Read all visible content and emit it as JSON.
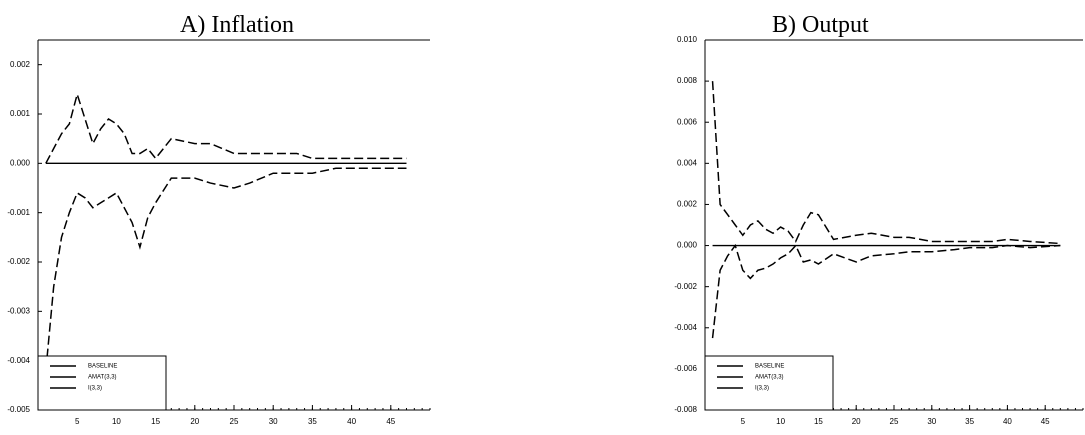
{
  "chart_data": [
    {
      "type": "line",
      "title": "A) Inflation",
      "x": [
        1,
        2,
        3,
        4,
        5,
        6,
        7,
        8,
        9,
        10,
        11,
        12,
        13,
        14,
        15,
        17,
        20,
        22,
        25,
        27,
        30,
        33,
        35,
        38,
        40,
        43,
        47
      ],
      "series": [
        {
          "name": "BASELINE",
          "color": "#000000",
          "values": [
            0,
            0,
            0,
            0,
            0,
            0,
            0,
            0,
            0,
            0,
            0,
            0,
            0,
            0,
            0,
            0,
            0,
            0,
            0,
            0,
            0,
            0,
            0,
            0,
            0,
            0,
            0
          ]
        },
        {
          "name": "AMAT(3,3)",
          "color": "#000000",
          "values": [
            0,
            0.0003,
            0.0006,
            0.0008,
            0.0014,
            0.0009,
            0.0004,
            0.0007,
            0.0009,
            0.0008,
            0.0006,
            0.0002,
            0.0002,
            0.0003,
            0.0001,
            0.0005,
            0.0004,
            0.0004,
            0.0002,
            0.0002,
            0.0002,
            0.0002,
            0.0001,
            0.0001,
            0.0001,
            0.0001,
            0.0001
          ]
        },
        {
          "name": "I(3,3)",
          "color": "#000000",
          "values": [
            -0.0042,
            -0.0025,
            -0.0015,
            -0.001,
            -0.0006,
            -0.0007,
            -0.0009,
            -0.0008,
            -0.0007,
            -0.0006,
            -0.0009,
            -0.0012,
            -0.0017,
            -0.0011,
            -0.0008,
            -0.0003,
            -0.0003,
            -0.0004,
            -0.0005,
            -0.0004,
            -0.0002,
            -0.0002,
            -0.0002,
            -0.0001,
            -0.0001,
            -0.0001,
            -0.0001
          ]
        }
      ],
      "xlim": [
        0,
        50
      ],
      "xticks": [
        5,
        10,
        15,
        20,
        25,
        30,
        35,
        40,
        45
      ],
      "ylim": [
        -0.005,
        0.0025
      ],
      "yticks": [
        {
          "value": 0.002,
          "label": "0.002"
        },
        {
          "value": 0.001,
          "label": "0.001"
        },
        {
          "value": 0,
          "label": "0.000"
        },
        {
          "value": -0.001,
          "label": "-0.001"
        },
        {
          "value": -0.002,
          "label": "-0.002"
        },
        {
          "value": -0.003,
          "label": "-0.003"
        },
        {
          "value": -0.004,
          "label": "-0.004"
        },
        {
          "value": -0.005,
          "label": "-0.005"
        }
      ],
      "legend": "lower left"
    },
    {
      "type": "line",
      "title": "B) Output",
      "x": [
        1,
        2,
        3,
        4,
        5,
        6,
        7,
        8,
        9,
        10,
        11,
        12,
        13,
        14,
        15,
        17,
        20,
        22,
        25,
        27,
        30,
        33,
        35,
        38,
        40,
        43,
        47
      ],
      "series": [
        {
          "name": "BASELINE",
          "color": "#000000",
          "values": [
            0,
            0,
            0,
            0,
            0,
            0,
            0,
            0,
            0,
            0,
            0,
            0,
            0,
            0,
            0,
            0,
            0,
            0,
            0,
            0,
            0,
            0,
            0,
            0,
            0,
            0,
            0
          ]
        },
        {
          "name": "AMAT(3,3)",
          "color": "#000000",
          "values": [
            0.008,
            0.002,
            0.0015,
            0.001,
            0.0005,
            0.001,
            0.0012,
            0.0008,
            0.0006,
            0.0009,
            0.0007,
            0.0002,
            0.001,
            0.0016,
            0.0015,
            0.0003,
            0.0005,
            0.0006,
            0.0004,
            0.0004,
            0.0002,
            0.0002,
            0.0002,
            0.0002,
            0.0003,
            0.0002,
            0.0001
          ]
        },
        {
          "name": "I(3,3)",
          "color": "#000000",
          "values": [
            -0.0045,
            -0.0012,
            -0.0005,
            0,
            -0.0012,
            -0.0016,
            -0.0012,
            -0.0011,
            -0.0009,
            -0.0006,
            -0.0004,
            0,
            -0.0008,
            -0.0007,
            -0.0009,
            -0.0004,
            -0.0008,
            -0.0005,
            -0.0004,
            -0.0003,
            -0.0003,
            -0.0002,
            -0.0001,
            -0.0001,
            0,
            -0.0001,
            0
          ]
        }
      ],
      "xlim": [
        0,
        50
      ],
      "xticks": [
        5,
        10,
        15,
        20,
        25,
        30,
        35,
        40,
        45
      ],
      "ylim": [
        -0.008,
        0.01
      ],
      "yticks": [
        {
          "value": 0.01,
          "label": "0.010"
        },
        {
          "value": 0.008,
          "label": "0.008"
        },
        {
          "value": 0.006,
          "label": "0.006"
        },
        {
          "value": 0.004,
          "label": "0.004"
        },
        {
          "value": 0.002,
          "label": "0.002"
        },
        {
          "value": 0,
          "label": "0.000"
        },
        {
          "value": -0.002,
          "label": "-0.002"
        },
        {
          "value": -0.004,
          "label": "-0.004"
        },
        {
          "value": -0.006,
          "label": "-0.006"
        },
        {
          "value": -0.008,
          "label": "-0.008"
        }
      ],
      "legend": "lower left"
    }
  ]
}
